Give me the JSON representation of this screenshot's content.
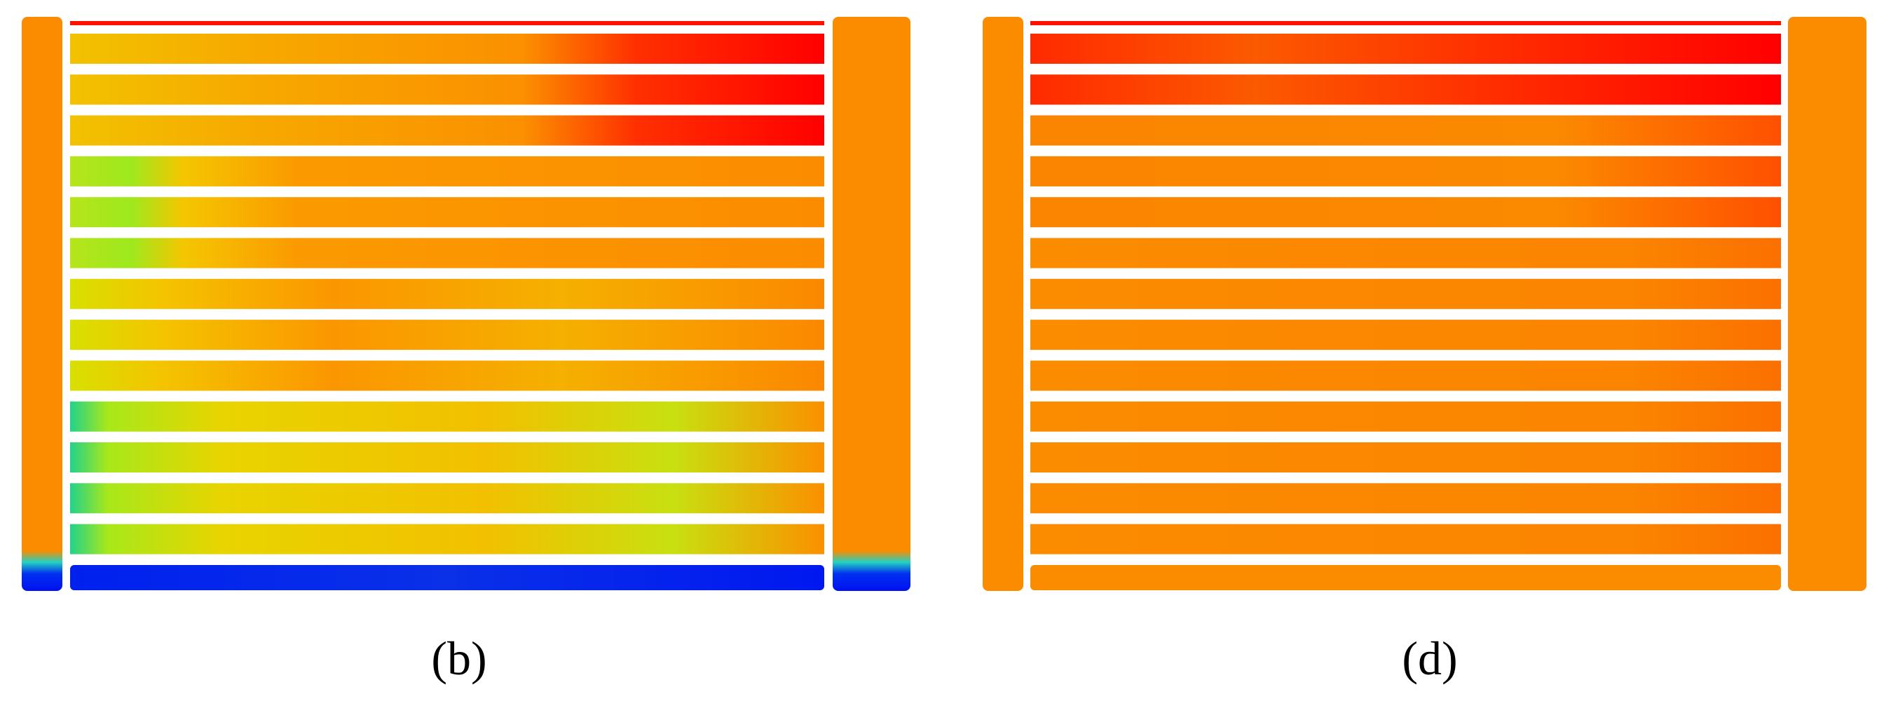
{
  "panels": [
    {
      "label": "(b)"
    },
    {
      "label": "(d)"
    }
  ]
}
